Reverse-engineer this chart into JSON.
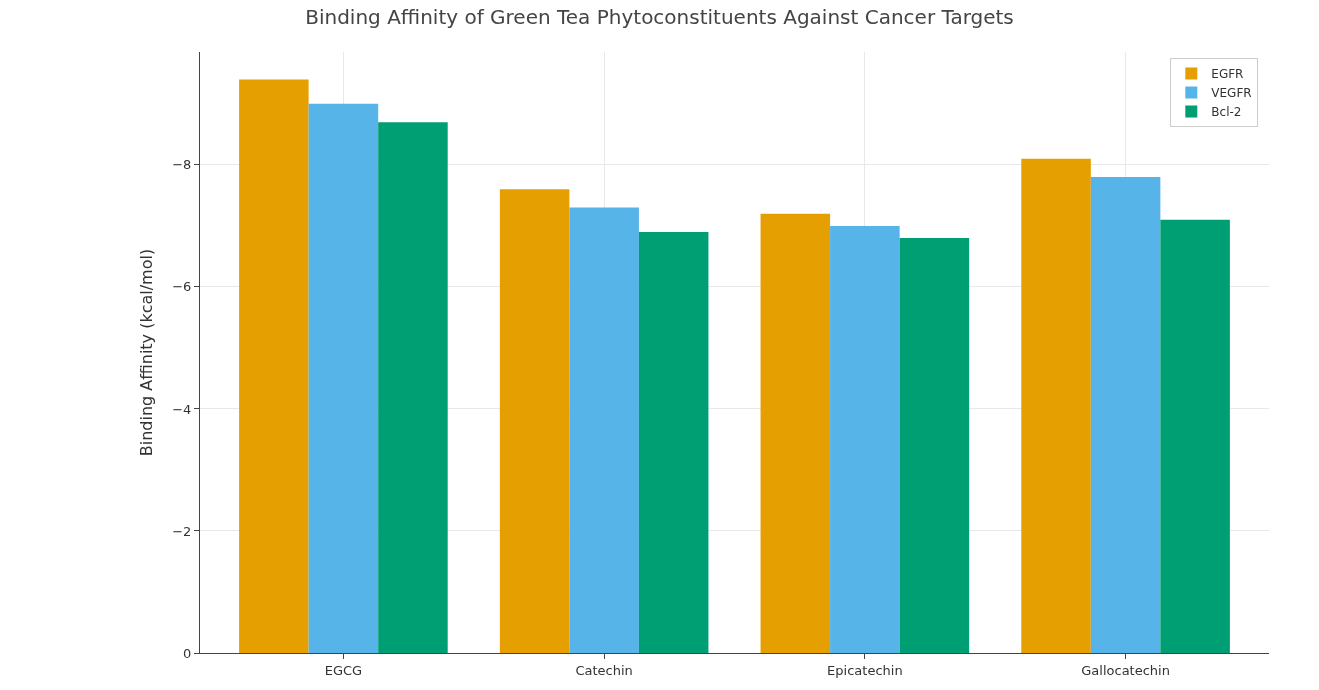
{
  "chart_data": {
    "type": "bar",
    "title": "Binding Affinity of Green Tea Phytoconstituents Against Cancer Targets",
    "ylabel": "Binding Affinity (kcal/mol)",
    "categories": [
      "EGCG",
      "Catechin",
      "Epicatechin",
      "Gallocatechin"
    ],
    "series": [
      {
        "name": "EGFR",
        "color": "#e69f00",
        "values": [
          -9.4,
          -7.6,
          -7.2,
          -8.1
        ]
      },
      {
        "name": "VEGFR",
        "color": "#56b4e9",
        "values": [
          -9.0,
          -7.3,
          -7.0,
          -7.8
        ]
      },
      {
        "name": "Bcl-2",
        "color": "#009e73",
        "values": [
          -8.7,
          -6.9,
          -6.8,
          -7.1
        ]
      }
    ],
    "ylim": [
      0,
      -9.85
    ],
    "yticks": [
      0,
      {
        "value": -2,
        "label": "−2"
      },
      {
        "value": -4,
        "label": "−4"
      },
      {
        "value": -6,
        "label": "−6"
      },
      {
        "value": -8,
        "label": "−8"
      }
    ],
    "grid": true,
    "legend": "top right"
  }
}
